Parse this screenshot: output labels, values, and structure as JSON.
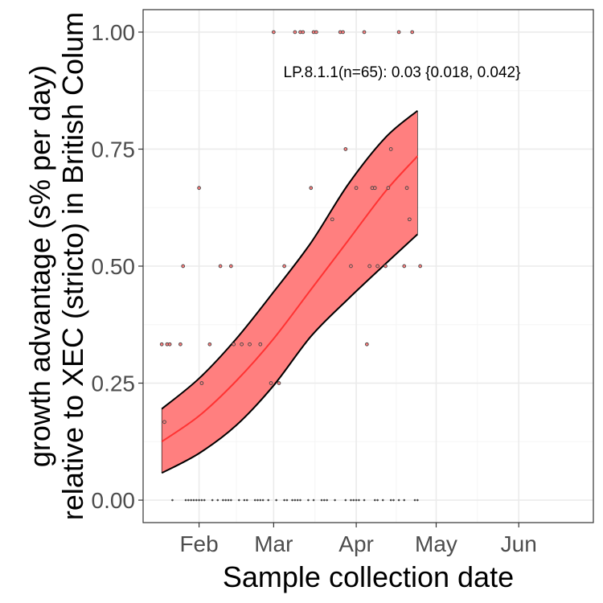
{
  "chart_data": {
    "type": "scatter",
    "xlabel": "Sample collection date",
    "ylabel_lines": [
      "growth advantage (s% per day)",
      "relative to XEC (stricto) in British Colum"
    ],
    "annotation": "LP.8.1.1(n=65): 0.03 {0.018, 0.042}",
    "xlim": [
      "2025-01-11",
      "2025-06-29"
    ],
    "ylim": [
      -0.048,
      1.048
    ],
    "x_ticks": [
      {
        "date": "2025-02-01",
        "label": "Feb"
      },
      {
        "date": "2025-03-01",
        "label": "Mar"
      },
      {
        "date": "2025-04-01",
        "label": "Apr"
      },
      {
        "date": "2025-05-01",
        "label": "May"
      },
      {
        "date": "2025-06-01",
        "label": "Jun"
      }
    ],
    "y_ticks": [
      {
        "value": 0.0,
        "label": "0.00"
      },
      {
        "value": 0.25,
        "label": "0.25"
      },
      {
        "value": 0.5,
        "label": "0.50"
      },
      {
        "value": 0.75,
        "label": "0.75"
      },
      {
        "value": 1.0,
        "label": "1.00"
      }
    ],
    "grid": true,
    "colors": {
      "fit_line": "#ff3333",
      "ribbon_fill": "#ff7f7f",
      "ribbon_border": "#000000",
      "points": "#444444",
      "panel_border": "#333333",
      "grid_major": "#ebebeb",
      "grid_minor": "#f5f5f5"
    },
    "fit": {
      "x": [
        "2025-01-18",
        "2025-02-01",
        "2025-02-15",
        "2025-03-01",
        "2025-03-15",
        "2025-03-29",
        "2025-04-12",
        "2025-04-24"
      ],
      "y": [
        0.125,
        0.18,
        0.255,
        0.345,
        0.45,
        0.555,
        0.66,
        0.735
      ],
      "lower": [
        0.058,
        0.1,
        0.16,
        0.245,
        0.35,
        0.43,
        0.505,
        0.568
      ],
      "upper": [
        0.195,
        0.26,
        0.345,
        0.445,
        0.55,
        0.675,
        0.775,
        0.832
      ]
    },
    "points": [
      {
        "x": "2025-01-18",
        "y": 0.333
      },
      {
        "x": "2025-01-19",
        "y": 0.167
      },
      {
        "x": "2025-01-20",
        "y": 0.333
      },
      {
        "x": "2025-01-21",
        "y": 0.333
      },
      {
        "x": "2025-01-25",
        "y": 0.333
      },
      {
        "x": "2025-01-26",
        "y": 0.5
      },
      {
        "x": "2025-02-01",
        "y": 0.667
      },
      {
        "x": "2025-02-02",
        "y": 0.25
      },
      {
        "x": "2025-02-05",
        "y": 0.333
      },
      {
        "x": "2025-02-09",
        "y": 0.5
      },
      {
        "x": "2025-02-13",
        "y": 0.5
      },
      {
        "x": "2025-02-14",
        "y": 0.333
      },
      {
        "x": "2025-02-17",
        "y": 0.333
      },
      {
        "x": "2025-02-20",
        "y": 0.333
      },
      {
        "x": "2025-02-24",
        "y": 0.333
      },
      {
        "x": "2025-02-28",
        "y": 0.25
      },
      {
        "x": "2025-03-03",
        "y": 0.25
      },
      {
        "x": "2025-03-05",
        "y": 0.5
      },
      {
        "x": "2025-03-01",
        "y": 1.0
      },
      {
        "x": "2025-03-09",
        "y": 1.0
      },
      {
        "x": "2025-03-11",
        "y": 1.0
      },
      {
        "x": "2025-03-12",
        "y": 1.0
      },
      {
        "x": "2025-03-15",
        "y": 0.667
      },
      {
        "x": "2025-03-16",
        "y": 1.0
      },
      {
        "x": "2025-03-17",
        "y": 1.0
      },
      {
        "x": "2025-03-23",
        "y": 0.6
      },
      {
        "x": "2025-03-26",
        "y": 1.0
      },
      {
        "x": "2025-03-27",
        "y": 1.0
      },
      {
        "x": "2025-03-28",
        "y": 0.75
      },
      {
        "x": "2025-03-30",
        "y": 0.5
      },
      {
        "x": "2025-04-01",
        "y": 0.667
      },
      {
        "x": "2025-04-04",
        "y": 1.0
      },
      {
        "x": "2025-04-05",
        "y": 0.333
      },
      {
        "x": "2025-04-06",
        "y": 0.5
      },
      {
        "x": "2025-04-07",
        "y": 0.667
      },
      {
        "x": "2025-04-08",
        "y": 0.667
      },
      {
        "x": "2025-04-09",
        "y": 0.5
      },
      {
        "x": "2025-04-12",
        "y": 0.5
      },
      {
        "x": "2025-04-13",
        "y": 0.667
      },
      {
        "x": "2025-04-14",
        "y": 0.75
      },
      {
        "x": "2025-04-17",
        "y": 1.0
      },
      {
        "x": "2025-04-19",
        "y": 0.5
      },
      {
        "x": "2025-04-20",
        "y": 0.667
      },
      {
        "x": "2025-04-21",
        "y": 0.6
      },
      {
        "x": "2025-04-22",
        "y": 1.0
      },
      {
        "x": "2025-04-25",
        "y": 0.5
      },
      {
        "x": "2025-01-22",
        "y": 0.0
      },
      {
        "x": "2025-01-27",
        "y": 0.0
      },
      {
        "x": "2025-01-28",
        "y": 0.0
      },
      {
        "x": "2025-01-29",
        "y": 0.0
      },
      {
        "x": "2025-01-30",
        "y": 0.0
      },
      {
        "x": "2025-01-31",
        "y": 0.0
      },
      {
        "x": "2025-02-01",
        "y": 0.0
      },
      {
        "x": "2025-02-02",
        "y": 0.0
      },
      {
        "x": "2025-02-03",
        "y": 0.0
      },
      {
        "x": "2025-02-06",
        "y": 0.0
      },
      {
        "x": "2025-02-08",
        "y": 0.0
      },
      {
        "x": "2025-02-10",
        "y": 0.0
      },
      {
        "x": "2025-02-11",
        "y": 0.0
      },
      {
        "x": "2025-02-12",
        "y": 0.0
      },
      {
        "x": "2025-02-13",
        "y": 0.0
      },
      {
        "x": "2025-02-16",
        "y": 0.0
      },
      {
        "x": "2025-02-18",
        "y": 0.0
      },
      {
        "x": "2025-02-19",
        "y": 0.0
      },
      {
        "x": "2025-02-22",
        "y": 0.0
      },
      {
        "x": "2025-02-23",
        "y": 0.0
      },
      {
        "x": "2025-02-24",
        "y": 0.0
      },
      {
        "x": "2025-02-25",
        "y": 0.0
      },
      {
        "x": "2025-02-27",
        "y": 0.0
      },
      {
        "x": "2025-03-02",
        "y": 0.0
      },
      {
        "x": "2025-03-05",
        "y": 0.0
      },
      {
        "x": "2025-03-06",
        "y": 0.0
      },
      {
        "x": "2025-03-08",
        "y": 0.0
      },
      {
        "x": "2025-03-09",
        "y": 0.0
      },
      {
        "x": "2025-03-10",
        "y": 0.0
      },
      {
        "x": "2025-03-11",
        "y": 0.0
      },
      {
        "x": "2025-03-14",
        "y": 0.0
      },
      {
        "x": "2025-03-16",
        "y": 0.0
      },
      {
        "x": "2025-03-19",
        "y": 0.0
      },
      {
        "x": "2025-03-20",
        "y": 0.0
      },
      {
        "x": "2025-03-21",
        "y": 0.0
      },
      {
        "x": "2025-03-24",
        "y": 0.0
      },
      {
        "x": "2025-03-28",
        "y": 0.0
      },
      {
        "x": "2025-03-30",
        "y": 0.0
      },
      {
        "x": "2025-03-31",
        "y": 0.0
      },
      {
        "x": "2025-04-01",
        "y": 0.0
      },
      {
        "x": "2025-04-02",
        "y": 0.0
      },
      {
        "x": "2025-04-04",
        "y": 0.0
      },
      {
        "x": "2025-04-08",
        "y": 0.0
      },
      {
        "x": "2025-04-09",
        "y": 0.0
      },
      {
        "x": "2025-04-11",
        "y": 0.0
      },
      {
        "x": "2025-04-14",
        "y": 0.0
      },
      {
        "x": "2025-04-15",
        "y": 0.0
      },
      {
        "x": "2025-04-17",
        "y": 0.0
      },
      {
        "x": "2025-04-19",
        "y": 0.0
      },
      {
        "x": "2025-04-23",
        "y": 0.0
      },
      {
        "x": "2025-04-24",
        "y": 0.0
      }
    ]
  }
}
